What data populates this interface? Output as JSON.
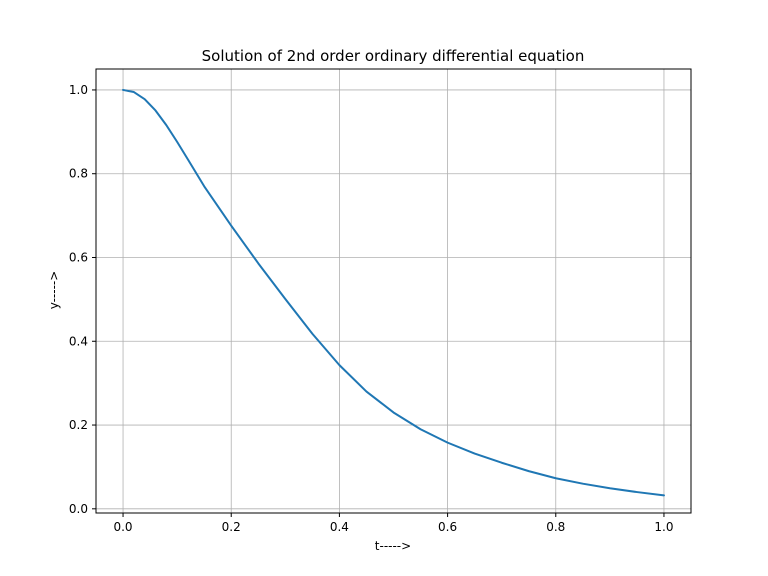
{
  "chart_data": {
    "type": "line",
    "title": "Solution of 2nd order ordinary differential equation",
    "xlabel": "t----->",
    "ylabel": "y----->",
    "xlim": [
      -0.05,
      1.05
    ],
    "ylim": [
      -0.01,
      1.05
    ],
    "xticks": [
      0.0,
      0.2,
      0.4,
      0.6,
      0.8,
      1.0
    ],
    "xtick_labels": [
      "0.0",
      "0.2",
      "0.4",
      "0.6",
      "0.8",
      "1.0"
    ],
    "yticks": [
      0.0,
      0.2,
      0.4,
      0.6,
      0.8,
      1.0
    ],
    "ytick_labels": [
      "0.0",
      "0.2",
      "0.4",
      "0.6",
      "0.8",
      "1.0"
    ],
    "grid": true,
    "line_color": "#1f77b4",
    "series": [
      {
        "x": [
          0.0,
          0.02,
          0.04,
          0.06,
          0.08,
          0.1,
          0.12,
          0.15,
          0.2,
          0.25,
          0.3,
          0.35,
          0.4,
          0.45,
          0.5,
          0.55,
          0.6,
          0.65,
          0.7,
          0.75,
          0.8,
          0.85,
          0.9,
          0.95,
          1.0
        ],
        "values": [
          1.0,
          0.995,
          0.978,
          0.951,
          0.916,
          0.876,
          0.834,
          0.77,
          0.676,
          0.586,
          0.501,
          0.418,
          0.343,
          0.28,
          0.23,
          0.19,
          0.158,
          0.132,
          0.11,
          0.09,
          0.073,
          0.06,
          0.049,
          0.04,
          0.032
        ]
      }
    ]
  }
}
